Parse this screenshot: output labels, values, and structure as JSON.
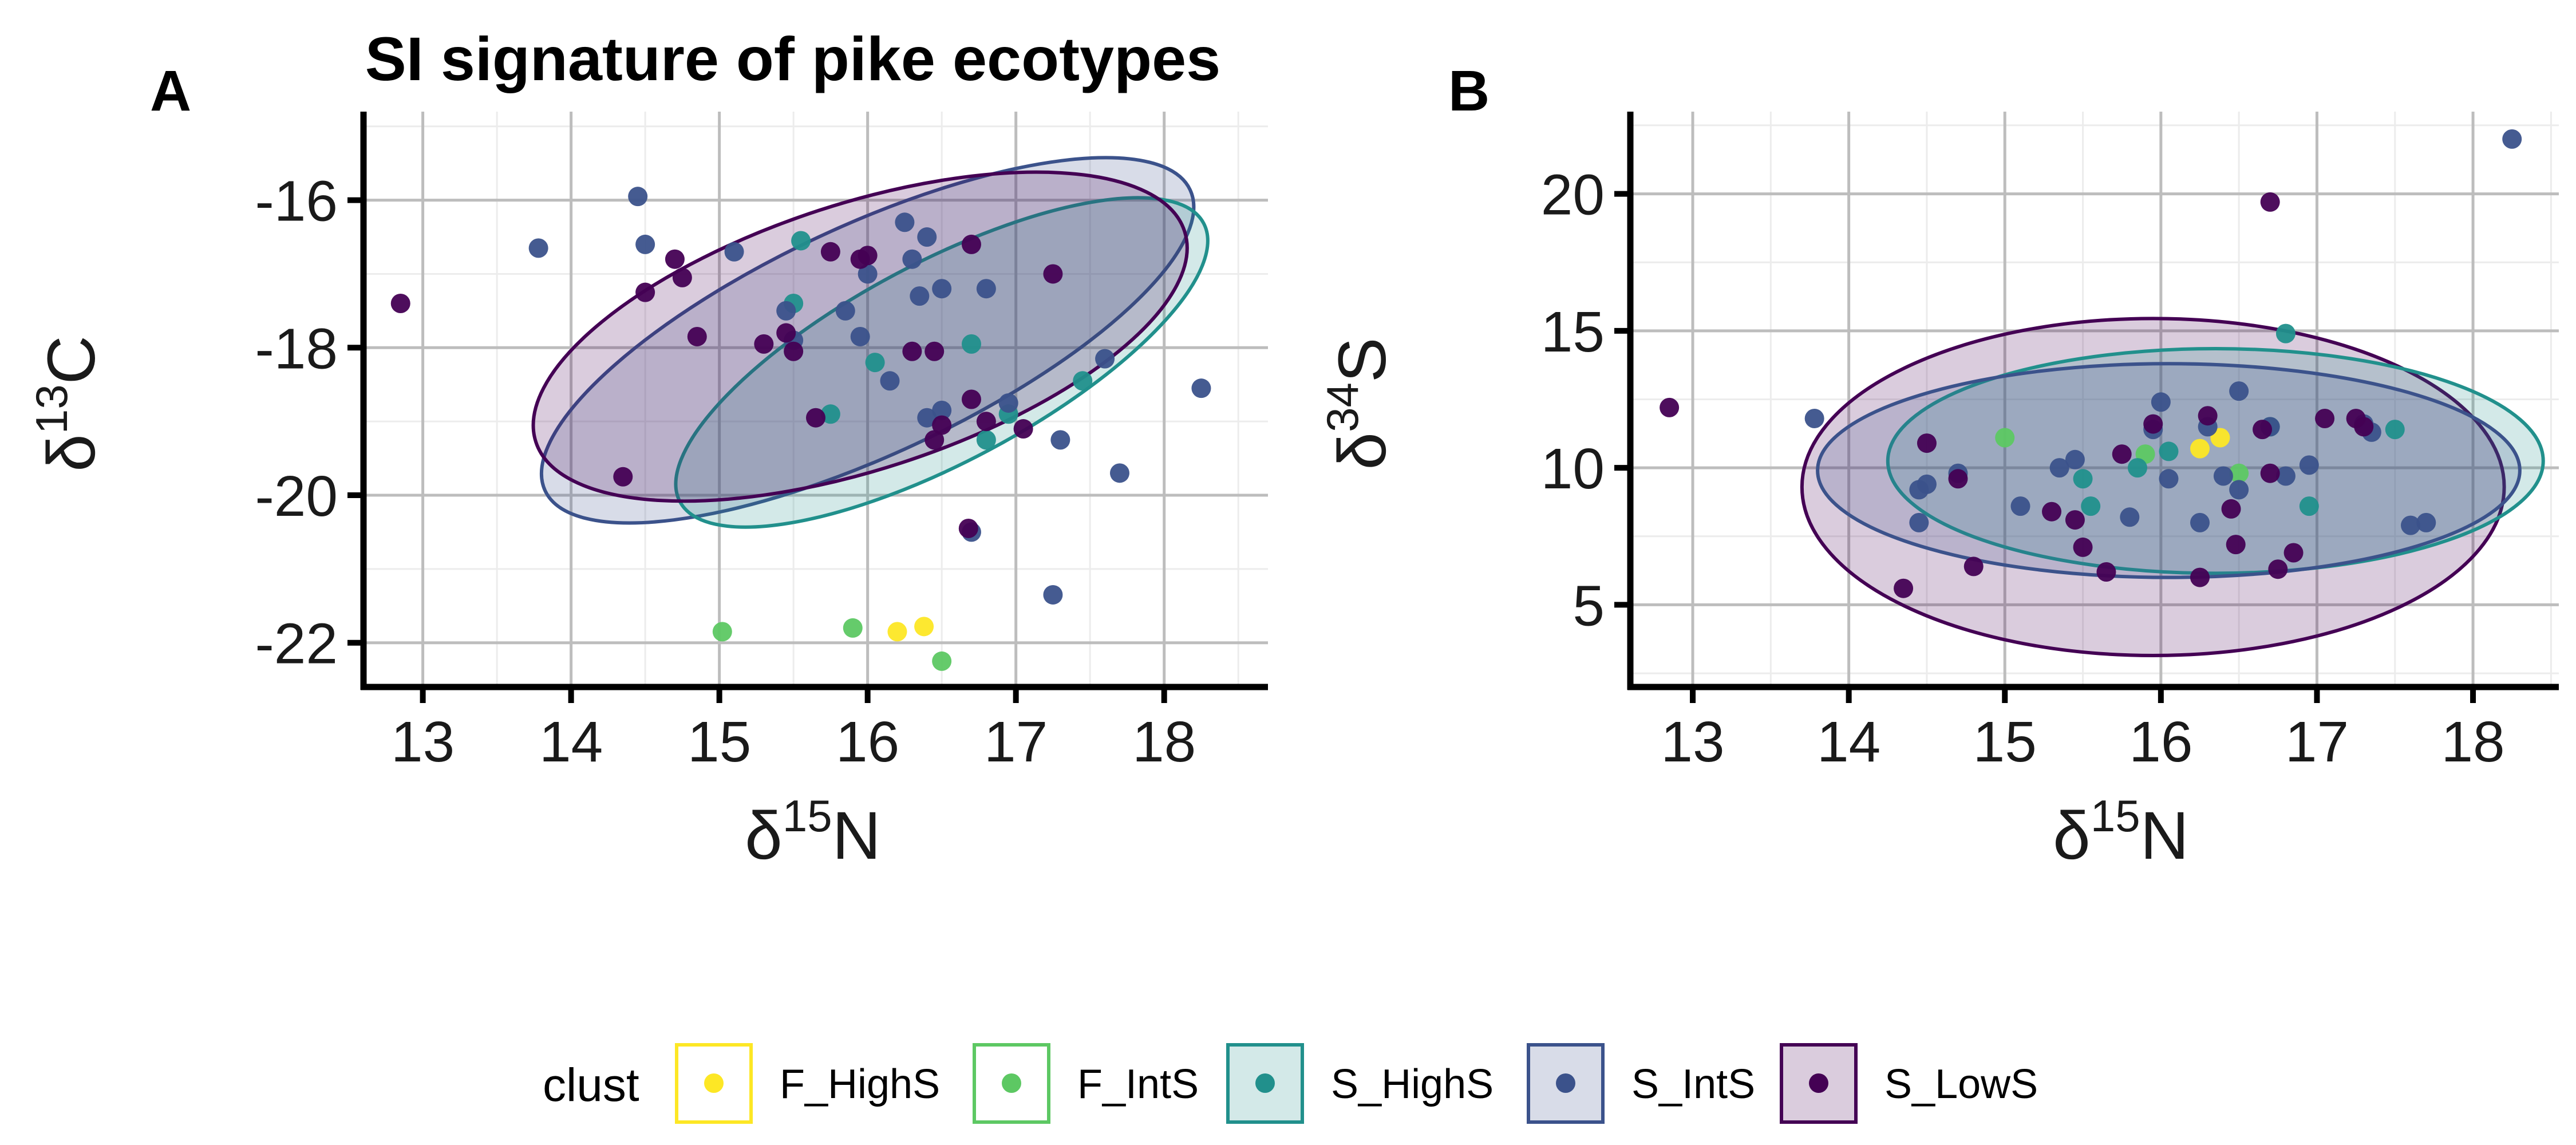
{
  "chart_data": [
    {
      "panel_tag": "A",
      "type": "scatter",
      "title": "SI signature of pike ecotypes",
      "xlabel": {
        "base": "δ",
        "sup": "15",
        "tail": "N"
      },
      "ylabel": {
        "base": "δ",
        "sup": "13",
        "tail": "C"
      },
      "xlim": [
        12.6,
        18.7
      ],
      "ylim": [
        -22.6,
        -14.8
      ],
      "xticks": [
        13,
        14,
        15,
        16,
        17,
        18
      ],
      "yticks": [
        -16,
        -18,
        -20,
        -22
      ],
      "xtick_labels": [
        "13",
        "14",
        "15",
        "16",
        "17",
        "18"
      ],
      "ytick_labels": [
        "-16",
        "-18",
        "-20",
        "-22"
      ],
      "grid": true,
      "ellipses": [
        {
          "series": "S_IntS",
          "center": [
            16.0,
            -17.9
          ],
          "semi_axes": [
            2.4,
            1.55
          ],
          "angle_deg": -25
        },
        {
          "series": "S_HighS",
          "center": [
            16.5,
            -18.2
          ],
          "semi_axes": [
            2.0,
            1.35
          ],
          "angle_deg": -28
        },
        {
          "series": "S_LowS",
          "center": [
            15.95,
            -17.85
          ],
          "semi_axes": [
            2.3,
            1.8
          ],
          "angle_deg": -18
        }
      ],
      "series": [
        {
          "name": "F_HighS",
          "points": [
            [
              16.2,
              -21.85
            ],
            [
              16.38,
              -21.78
            ]
          ]
        },
        {
          "name": "F_IntS",
          "points": [
            [
              15.02,
              -21.85
            ],
            [
              15.9,
              -21.8
            ],
            [
              16.5,
              -22.25
            ]
          ]
        },
        {
          "name": "S_HighS",
          "points": [
            [
              15.55,
              -16.55
            ],
            [
              15.5,
              -17.4
            ],
            [
              16.05,
              -18.2
            ],
            [
              15.75,
              -18.9
            ],
            [
              16.7,
              -17.95
            ],
            [
              16.95,
              -18.9
            ],
            [
              16.8,
              -19.25
            ],
            [
              17.45,
              -18.45
            ]
          ]
        },
        {
          "name": "S_IntS",
          "points": [
            [
              13.78,
              -16.65
            ],
            [
              14.45,
              -15.95
            ],
            [
              14.5,
              -16.6
            ],
            [
              15.1,
              -16.7
            ],
            [
              15.45,
              -17.5
            ],
            [
              15.5,
              -17.9
            ],
            [
              15.85,
              -17.5
            ],
            [
              15.95,
              -17.85
            ],
            [
              16.0,
              -17.0
            ],
            [
              16.25,
              -16.3
            ],
            [
              16.3,
              -16.8
            ],
            [
              16.4,
              -16.5
            ],
            [
              16.35,
              -17.3
            ],
            [
              16.5,
              -17.2
            ],
            [
              16.8,
              -17.2
            ],
            [
              16.15,
              -18.45
            ],
            [
              16.4,
              -18.95
            ],
            [
              16.5,
              -18.85
            ],
            [
              16.95,
              -18.75
            ],
            [
              17.3,
              -19.25
            ],
            [
              17.6,
              -18.15
            ],
            [
              17.7,
              -19.7
            ],
            [
              18.25,
              -18.55
            ],
            [
              16.7,
              -20.5
            ],
            [
              17.25,
              -21.35
            ]
          ]
        },
        {
          "name": "S_LowS",
          "points": [
            [
              12.85,
              -17.4
            ],
            [
              14.35,
              -19.75
            ],
            [
              14.5,
              -17.25
            ],
            [
              14.7,
              -16.8
            ],
            [
              14.75,
              -17.05
            ],
            [
              14.85,
              -17.85
            ],
            [
              15.3,
              -17.95
            ],
            [
              15.45,
              -17.8
            ],
            [
              15.5,
              -18.05
            ],
            [
              15.75,
              -16.7
            ],
            [
              15.65,
              -18.95
            ],
            [
              15.95,
              -16.8
            ],
            [
              16.0,
              -16.75
            ],
            [
              16.3,
              -18.05
            ],
            [
              16.45,
              -18.05
            ],
            [
              16.5,
              -19.05
            ],
            [
              16.45,
              -19.25
            ],
            [
              16.7,
              -16.6
            ],
            [
              16.7,
              -18.7
            ],
            [
              16.8,
              -19.0
            ],
            [
              17.05,
              -19.1
            ],
            [
              17.25,
              -17.0
            ],
            [
              16.68,
              -20.45
            ]
          ]
        }
      ]
    },
    {
      "panel_tag": "B",
      "type": "scatter",
      "title": "",
      "xlabel": {
        "base": "δ",
        "sup": "15",
        "tail": "N"
      },
      "ylabel": {
        "base": "δ",
        "sup": "34",
        "tail": "S"
      },
      "xlim": [
        12.6,
        18.55
      ],
      "ylim": [
        2.0,
        23.0
      ],
      "xticks": [
        13,
        14,
        15,
        16,
        17,
        18
      ],
      "yticks": [
        5,
        10,
        15,
        20
      ],
      "xtick_labels": [
        "13",
        "14",
        "15",
        "16",
        "17",
        "18"
      ],
      "ytick_labels": [
        "5",
        "10",
        "15",
        "20"
      ],
      "grid": true,
      "ellipses": [
        {
          "series": "S_LowS",
          "center": [
            15.95,
            9.3
          ],
          "semi_axes": [
            2.25,
            6.15
          ],
          "angle_deg": 0
        },
        {
          "series": "S_HighS",
          "center": [
            16.35,
            10.25
          ],
          "semi_axes": [
            2.1,
            4.1
          ],
          "angle_deg": 0
        },
        {
          "series": "S_IntS",
          "center": [
            16.05,
            9.9
          ],
          "semi_axes": [
            2.25,
            3.9
          ],
          "angle_deg": 0
        }
      ],
      "series": [
        {
          "name": "F_HighS",
          "points": [
            [
              16.25,
              10.7
            ],
            [
              16.38,
              11.1
            ]
          ]
        },
        {
          "name": "F_IntS",
          "points": [
            [
              15.0,
              11.1
            ],
            [
              15.9,
              10.5
            ],
            [
              16.5,
              9.8
            ]
          ]
        },
        {
          "name": "S_HighS",
          "points": [
            [
              15.5,
              9.6
            ],
            [
              15.55,
              8.6
            ],
            [
              16.05,
              10.6
            ],
            [
              16.7,
              11.5
            ],
            [
              16.8,
              14.9
            ],
            [
              16.95,
              8.6
            ],
            [
              17.5,
              11.4
            ],
            [
              15.85,
              10.0
            ]
          ]
        },
        {
          "name": "S_IntS",
          "points": [
            [
              13.78,
              11.8
            ],
            [
              14.45,
              9.2
            ],
            [
              14.5,
              9.4
            ],
            [
              14.45,
              8.0
            ],
            [
              14.7,
              9.8
            ],
            [
              15.1,
              8.6
            ],
            [
              15.35,
              10.0
            ],
            [
              15.45,
              10.3
            ],
            [
              15.95,
              11.4
            ],
            [
              16.0,
              12.4
            ],
            [
              16.05,
              9.6
            ],
            [
              16.25,
              8.0
            ],
            [
              16.3,
              11.5
            ],
            [
              16.4,
              9.7
            ],
            [
              16.5,
              12.8
            ],
            [
              16.5,
              9.2
            ],
            [
              16.8,
              9.7
            ],
            [
              16.7,
              11.5
            ],
            [
              16.95,
              10.1
            ],
            [
              17.3,
              11.6
            ],
            [
              17.35,
              11.3
            ],
            [
              17.6,
              7.9
            ],
            [
              17.7,
              8.0
            ],
            [
              18.25,
              22.0
            ],
            [
              15.8,
              8.2
            ]
          ]
        },
        {
          "name": "S_LowS",
          "points": [
            [
              12.85,
              12.2
            ],
            [
              14.35,
              5.6
            ],
            [
              14.5,
              10.9
            ],
            [
              14.7,
              9.6
            ],
            [
              14.8,
              6.4
            ],
            [
              15.3,
              8.4
            ],
            [
              15.45,
              8.1
            ],
            [
              15.5,
              7.1
            ],
            [
              15.65,
              6.2
            ],
            [
              15.75,
              10.5
            ],
            [
              15.95,
              11.6
            ],
            [
              16.25,
              6.0
            ],
            [
              16.3,
              11.9
            ],
            [
              16.45,
              8.5
            ],
            [
              16.48,
              7.2
            ],
            [
              16.7,
              19.7
            ],
            [
              16.7,
              9.8
            ],
            [
              16.75,
              6.3
            ],
            [
              16.85,
              6.9
            ],
            [
              17.05,
              11.8
            ],
            [
              17.25,
              11.8
            ],
            [
              17.3,
              11.5
            ],
            [
              16.65,
              11.4
            ]
          ]
        }
      ]
    }
  ],
  "legend": {
    "title": "clust",
    "items": [
      {
        "key": "F_HighS",
        "label": "F_HighS"
      },
      {
        "key": "F_IntS",
        "label": "F_IntS"
      },
      {
        "key": "S_HighS",
        "label": "S_HighS"
      },
      {
        "key": "S_IntS",
        "label": "S_IntS"
      },
      {
        "key": "S_LowS",
        "label": "S_LowS"
      }
    ]
  },
  "colors": {
    "F_HighS": "#FDE725",
    "F_IntS": "#5DC863",
    "S_HighS": "#21908C",
    "S_IntS": "#3B528B",
    "S_LowS": "#440154",
    "grid": "#bdbdbd",
    "axis": "#000000"
  }
}
